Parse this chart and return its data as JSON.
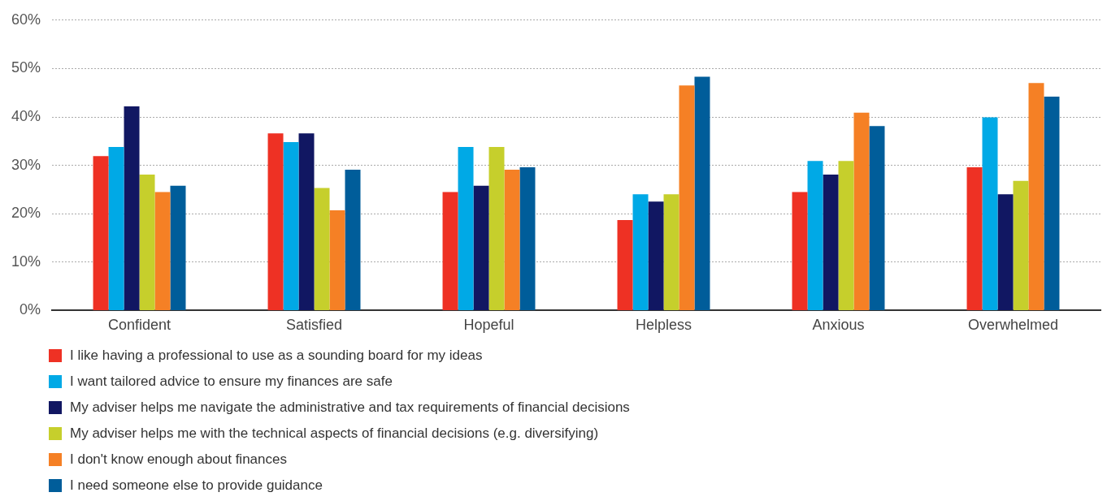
{
  "chart_data": {
    "type": "bar",
    "categories": [
      "Confident",
      "Satisfied",
      "Hopeful",
      "Helpless",
      "Anxious",
      "Overwhelmed"
    ],
    "series": [
      {
        "name": "I like having a professional to use as a sounding board for my ideas",
        "color": "#ee3124",
        "values": [
          31.9,
          36.6,
          24.5,
          18.7,
          24.5,
          29.6
        ]
      },
      {
        "name": "I want tailored advice to ensure my finances are safe",
        "color": "#00a9e6",
        "values": [
          33.8,
          34.8,
          33.8,
          24.0,
          30.9,
          39.9
        ]
      },
      {
        "name": "My adviser helps me navigate the administrative and tax requirements of financial decisions",
        "color": "#111762",
        "values": [
          42.2,
          36.6,
          25.8,
          22.5,
          28.1,
          24.0
        ]
      },
      {
        "name": "My adviser helps me with the technical aspects of financial decisions (e.g. diversifying)",
        "color": "#c6cf2c",
        "values": [
          28.1,
          25.3,
          33.8,
          24.0,
          30.9,
          26.8
        ]
      },
      {
        "name": "I don't know enough about finances",
        "color": "#f58025",
        "values": [
          24.5,
          20.7,
          29.1,
          46.5,
          40.9,
          47.0
        ]
      },
      {
        "name": "I need someone else to provide guidance",
        "color": "#005d9a",
        "values": [
          25.8,
          29.1,
          29.6,
          48.3,
          38.1,
          44.2
        ]
      }
    ],
    "ylim": [
      0,
      60
    ],
    "yticks": [
      {
        "value": 0,
        "label": "0%"
      },
      {
        "value": 10,
        "label": "10%"
      },
      {
        "value": 20,
        "label": "20%"
      },
      {
        "value": 30,
        "label": "30%"
      },
      {
        "value": 40,
        "label": "40%"
      },
      {
        "value": 50,
        "label": "50%"
      },
      {
        "value": 60,
        "label": "60%"
      }
    ],
    "grid": "y",
    "legend": "bottom left"
  }
}
